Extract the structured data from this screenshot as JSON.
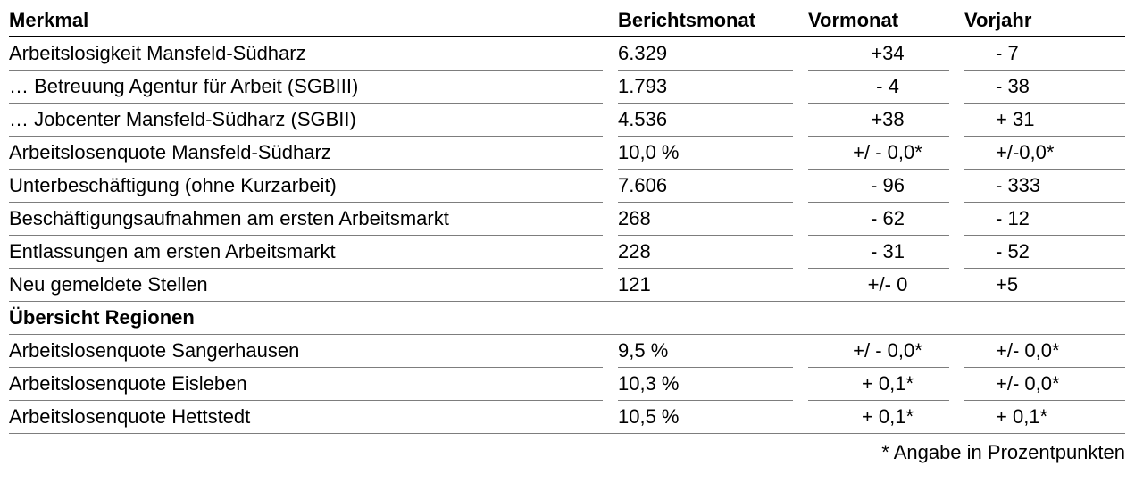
{
  "table": {
    "columns": [
      "Merkmal",
      "Berichtsmonat",
      "Vormonat",
      "Vorjahr"
    ],
    "rows": [
      {
        "merkmal": "Arbeitslosigkeit Mansfeld-Südharz",
        "berichtsmonat": "6.329",
        "vormonat": "+34",
        "vorjahr": "- 7",
        "divider": "cols"
      },
      {
        "merkmal": "… Betreuung Agentur für Arbeit (SGBIII)",
        "berichtsmonat": "1.793",
        "vormonat": "- 4",
        "vorjahr": "- 38",
        "divider": "cols"
      },
      {
        "merkmal": "… Jobcenter Mansfeld-Südharz (SGBII)",
        "berichtsmonat": "4.536",
        "vormonat": "+38",
        "vorjahr": "+ 31",
        "divider": "cols"
      },
      {
        "merkmal": "Arbeitslosenquote Mansfeld-Südharz",
        "berichtsmonat": "10,0 %",
        "vormonat": "+/ - 0,0*",
        "vorjahr": "+/-0,0*",
        "divider": "cols"
      },
      {
        "merkmal": "Unterbeschäftigung (ohne Kurzarbeit)",
        "berichtsmonat": "7.606",
        "vormonat": "- 96",
        "vorjahr": "- 333",
        "divider": "cols"
      },
      {
        "merkmal": "Beschäftigungsaufnahmen am ersten Arbeitsmarkt",
        "berichtsmonat": "268",
        "vormonat": "- 62",
        "vorjahr": "- 12",
        "divider": "cols"
      },
      {
        "merkmal": "Entlassungen am ersten Arbeitsmarkt",
        "berichtsmonat": "228",
        "vormonat": "- 31",
        "vorjahr": "- 52",
        "divider": "cols"
      },
      {
        "merkmal": "Neu gemeldete Stellen",
        "berichtsmonat": "121",
        "vormonat": "+/- 0",
        "vorjahr": "+5",
        "divider": "full"
      },
      {
        "merkmal": "Übersicht Regionen",
        "berichtsmonat": "",
        "vormonat": "",
        "vorjahr": "",
        "divider": "full",
        "type": "section"
      },
      {
        "merkmal": "Arbeitslosenquote Sangerhausen",
        "berichtsmonat": "9,5 %",
        "vormonat": "+/ - 0,0*",
        "vorjahr": "+/- 0,0*",
        "divider": "cols"
      },
      {
        "merkmal": "Arbeitslosenquote Eisleben",
        "berichtsmonat": "10,3 %",
        "vormonat": "+ 0,1*",
        "vorjahr": "+/- 0,0*",
        "divider": "cols"
      },
      {
        "merkmal": "Arbeitslosenquote Hettstedt",
        "berichtsmonat": "10,5 %",
        "vormonat": "+ 0,1*",
        "vorjahr": "+ 0,1*",
        "divider": "full"
      }
    ],
    "footnote": "* Angabe in Prozentpunkten"
  },
  "colors": {
    "background": "#ffffff",
    "text": "#000000",
    "header_rule": "#000000",
    "row_rule": "#7d7d7d"
  }
}
